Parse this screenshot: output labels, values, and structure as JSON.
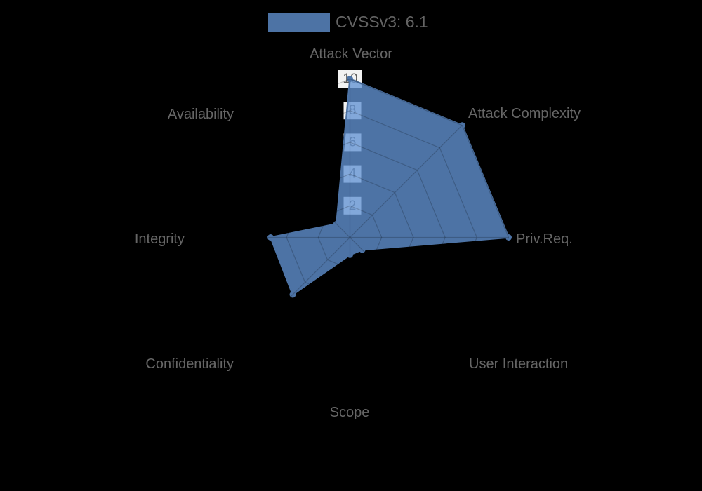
{
  "chart_data": {
    "type": "radar",
    "legend": {
      "position": "top",
      "label": "CVSSv3: 6.1"
    },
    "categories": [
      "Attack Vector",
      "Attack Complexity",
      "Priv.Req.",
      "User Interaction",
      "Scope",
      "Confidentiality",
      "Integrity",
      "Availability"
    ],
    "series": [
      {
        "name": "CVSSv3: 6.1",
        "values": [
          10,
          10,
          10,
          1.1,
          1.1,
          5.1,
          5.0,
          1.2
        ]
      }
    ],
    "ticks": [
      "2",
      "4",
      "6",
      "8",
      "10"
    ],
    "tick_values": [
      2,
      4,
      6,
      8,
      10
    ],
    "rlim": [
      0,
      10
    ],
    "grid": true,
    "colors": {
      "background": "#000000",
      "series_base": "#6394d3",
      "series_composite": "#4d73a5",
      "grid_line": "rgba(0,0,0,0.2)",
      "tick_backdrop": "rgba(255,255,255,0.95)",
      "tick_text": "#5a5a5a",
      "axis_label": "#666666",
      "legend_text": "#646464"
    }
  }
}
